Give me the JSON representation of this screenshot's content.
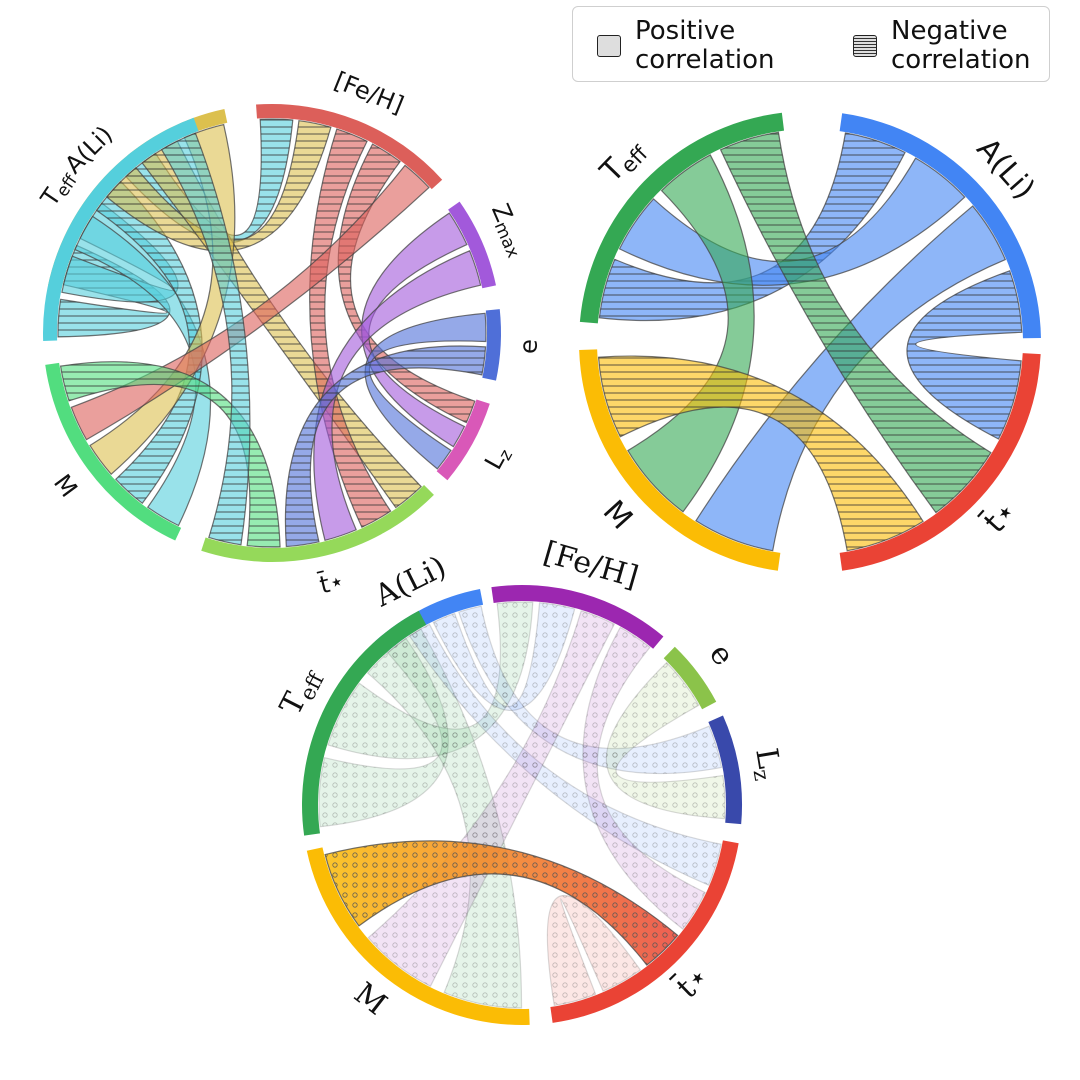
{
  "legend": {
    "positive_label": "Positive\ncorrelation",
    "negative_label": "Negative\ncorrelation"
  },
  "diagrams": [
    {
      "id": "top-left",
      "font": "sans",
      "segments": [
        {
          "key": "Ali",
          "label": "A(Li)",
          "color": "#dcc04e"
        },
        {
          "key": "FeH",
          "label": "[Fe/H]",
          "color": "#dc5f5a"
        },
        {
          "key": "Zmax",
          "label": "Z_max",
          "color": "#a259db"
        },
        {
          "key": "e",
          "label": "e",
          "color": "#4f6fd8"
        },
        {
          "key": "Lz",
          "label": "L_z",
          "color": "#d958b8"
        },
        {
          "key": "t",
          "label": "t̄⋆",
          "color": "#95d95a"
        },
        {
          "key": "M",
          "label": "M",
          "color": "#52dd7f"
        },
        {
          "key": "Teff",
          "label": "T_eff",
          "color": "#55cfdc"
        }
      ],
      "chords": [
        {
          "from": "Teff",
          "to": "Ali",
          "type": "negative"
        },
        {
          "from": "Teff",
          "to": "Ali",
          "type": "positive"
        },
        {
          "from": "Teff",
          "to": "M",
          "type": "positive"
        },
        {
          "from": "Teff",
          "to": "M",
          "type": "negative"
        },
        {
          "from": "Teff",
          "to": "FeH",
          "type": "negative"
        },
        {
          "from": "Ali",
          "to": "FeH",
          "type": "negative"
        },
        {
          "from": "Ali",
          "to": "t",
          "type": "negative"
        },
        {
          "from": "Ali",
          "to": "M",
          "type": "positive"
        },
        {
          "from": "FeH",
          "to": "t",
          "type": "negative"
        },
        {
          "from": "FeH",
          "to": "Lz",
          "type": "negative"
        },
        {
          "from": "FeH",
          "to": "M",
          "type": "positive"
        },
        {
          "from": "Zmax",
          "to": "Lz",
          "type": "positive"
        },
        {
          "from": "Zmax",
          "to": "t",
          "type": "positive"
        },
        {
          "from": "e",
          "to": "Lz",
          "type": "positive"
        },
        {
          "from": "e",
          "to": "t",
          "type": "negative"
        },
        {
          "from": "M",
          "to": "t",
          "type": "negative"
        },
        {
          "from": "Teff",
          "to": "t",
          "type": "negative"
        }
      ]
    },
    {
      "id": "top-right",
      "font": "sans",
      "segments": [
        {
          "key": "Ali",
          "label": "A(Li)",
          "color": "#4285f4"
        },
        {
          "key": "t",
          "label": "t̄⋆",
          "color": "#ea4335"
        },
        {
          "key": "M",
          "label": "M",
          "color": "#fbbc05"
        },
        {
          "key": "Teff",
          "label": "T_eff",
          "color": "#34a853"
        }
      ],
      "chords": [
        {
          "from": "Ali",
          "to": "Teff",
          "type": "negative"
        },
        {
          "from": "Ali",
          "to": "Teff",
          "type": "positive"
        },
        {
          "from": "Ali",
          "to": "M",
          "type": "positive"
        },
        {
          "from": "Ali",
          "to": "t",
          "type": "negative"
        },
        {
          "from": "Teff",
          "to": "M",
          "type": "positive"
        },
        {
          "from": "Teff",
          "to": "t",
          "type": "negative"
        },
        {
          "from": "M",
          "to": "t",
          "type": "negative"
        }
      ]
    },
    {
      "id": "bottom",
      "font": "serif",
      "segments": [
        {
          "key": "Ali",
          "label": "A(Li)",
          "color": "#4285f4"
        },
        {
          "key": "FeH",
          "label": "[Fe/H]",
          "color": "#9c27b0"
        },
        {
          "key": "e",
          "label": "e",
          "color": "#8bc34a"
        },
        {
          "key": "Lz",
          "label": "L_z",
          "color": "#3949ab"
        },
        {
          "key": "t",
          "label": "t̄⋆",
          "color": "#ea4335"
        },
        {
          "key": "M",
          "label": "M",
          "color": "#fbbc05"
        },
        {
          "key": "Teff",
          "label": "T_eff",
          "color": "#34a853"
        }
      ],
      "chords": [
        {
          "from": "Teff",
          "to": "Ali",
          "type": "faint"
        },
        {
          "from": "Teff",
          "to": "FeH",
          "type": "faint"
        },
        {
          "from": "Teff",
          "to": "M",
          "type": "faint"
        },
        {
          "from": "Ali",
          "to": "t",
          "type": "faint"
        },
        {
          "from": "Ali",
          "to": "FeH",
          "type": "faint"
        },
        {
          "from": "Ali",
          "to": "Lz",
          "type": "faint"
        },
        {
          "from": "FeH",
          "to": "M",
          "type": "faint"
        },
        {
          "from": "FeH",
          "to": "t",
          "type": "faint"
        },
        {
          "from": "e",
          "to": "Lz",
          "type": "faint"
        },
        {
          "from": "M",
          "to": "t",
          "type": "highlight"
        },
        {
          "from": "t",
          "to": "t",
          "type": "faint"
        }
      ]
    }
  ]
}
